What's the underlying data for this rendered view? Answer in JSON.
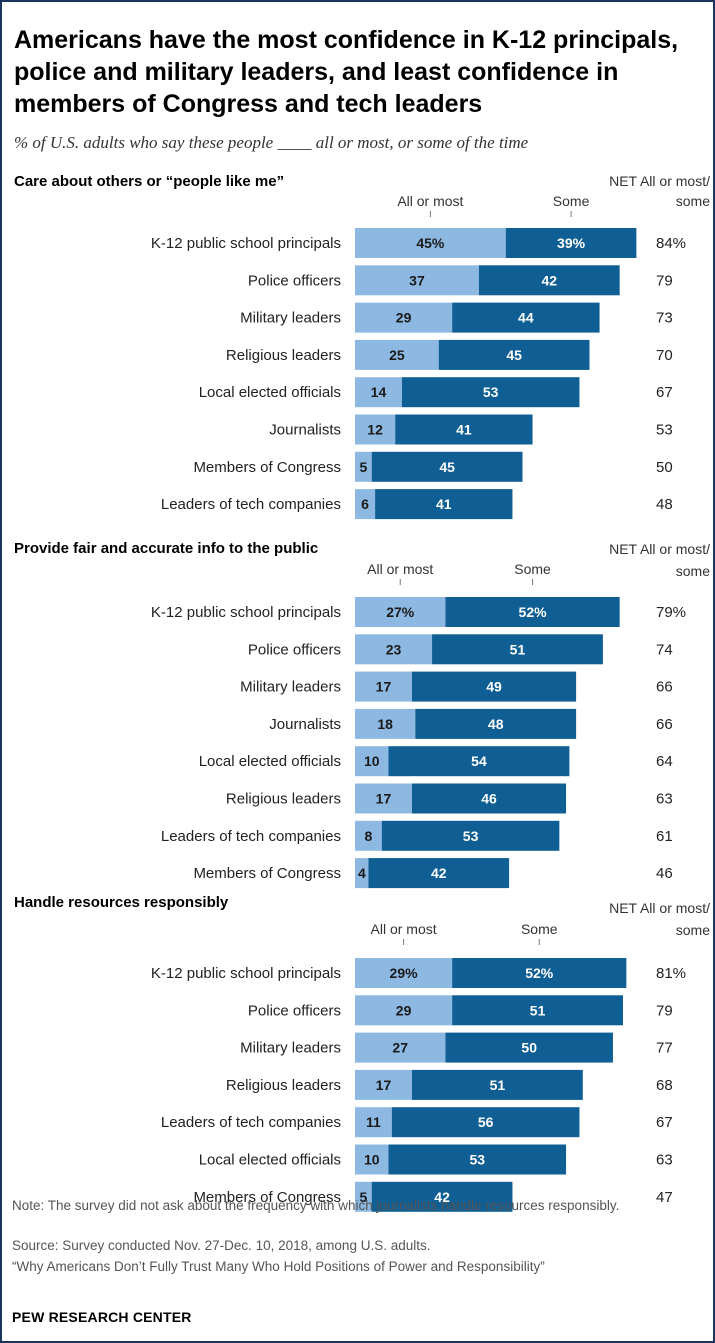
{
  "title": "Americans have the most confidence in K-12 principals, police and military leaders, and least confidence in members of Congress and tech leaders",
  "subtitle": "% of U.S. adults who say these people ____ all or most, or some of the time",
  "colors": {
    "all_or_most": "#8db8e2",
    "some": "#0f5e94"
  },
  "chart_data": [
    {
      "type": "bar",
      "stacked": true,
      "orientation": "horizontal",
      "title": "Care about others or “people like me”",
      "column_labels": {
        "all_or_most": "All or most",
        "some": "Some",
        "net_line1": "NET All or most/",
        "net_line2": "some"
      },
      "categories": [
        "K-12 public school principals",
        "Police officers",
        "Military leaders",
        "Religious leaders",
        "Local elected officials",
        "Journalists",
        "Members of Congress",
        "Leaders of tech companies"
      ],
      "series": [
        {
          "name": "All or most",
          "values": [
            45,
            37,
            29,
            25,
            14,
            12,
            5,
            6
          ],
          "labels": [
            "45%",
            "37",
            "29",
            "25",
            "14",
            "12",
            "5",
            "6"
          ]
        },
        {
          "name": "Some",
          "values": [
            39,
            42,
            44,
            45,
            53,
            41,
            45,
            41
          ],
          "labels": [
            "39%",
            "42",
            "44",
            "45",
            "53",
            "41",
            "45",
            "41"
          ]
        }
      ],
      "net": [
        "84%",
        "79",
        "73",
        "70",
        "67",
        "53",
        "50",
        "48"
      ]
    },
    {
      "type": "bar",
      "stacked": true,
      "orientation": "horizontal",
      "title": "Provide fair and accurate info to the public",
      "column_labels": {
        "all_or_most": "All or most",
        "some": "Some",
        "net_line1": "NET All or most/",
        "net_line2": "some"
      },
      "categories": [
        "K-12 public school principals",
        "Police officers",
        "Military leaders",
        "Journalists",
        "Local elected officials",
        "Religious leaders",
        "Leaders of tech companies",
        "Members of Congress"
      ],
      "series": [
        {
          "name": "All or most",
          "values": [
            27,
            23,
            17,
            18,
            10,
            17,
            8,
            4
          ],
          "labels": [
            "27%",
            "23",
            "17",
            "18",
            "10",
            "17",
            "8",
            "4"
          ]
        },
        {
          "name": "Some",
          "values": [
            52,
            51,
            49,
            48,
            54,
            46,
            53,
            42
          ],
          "labels": [
            "52%",
            "51",
            "49",
            "48",
            "54",
            "46",
            "53",
            "42"
          ]
        }
      ],
      "net": [
        "79%",
        "74",
        "66",
        "66",
        "64",
        "63",
        "61",
        "46"
      ]
    },
    {
      "type": "bar",
      "stacked": true,
      "orientation": "horizontal",
      "title": "Handle resources responsibly",
      "column_labels": {
        "all_or_most": "All or most",
        "some": "Some",
        "net_line1": "NET All or most/",
        "net_line2": "some"
      },
      "categories": [
        "K-12 public school principals",
        "Police officers",
        "Military leaders",
        "Religious leaders",
        "Leaders of tech companies",
        "Local elected officials",
        "Members of Congress"
      ],
      "series": [
        {
          "name": "All or most",
          "values": [
            29,
            29,
            27,
            17,
            11,
            10,
            5
          ],
          "labels": [
            "29%",
            "29",
            "27",
            "17",
            "11",
            "10",
            "5"
          ]
        },
        {
          "name": "Some",
          "values": [
            52,
            51,
            50,
            51,
            56,
            53,
            42
          ],
          "labels": [
            "52%",
            "51",
            "50",
            "51",
            "56",
            "53",
            "42"
          ]
        }
      ],
      "net": [
        "81%",
        "79",
        "77",
        "68",
        "67",
        "63",
        "47"
      ]
    }
  ],
  "notes": {
    "note": "Note: The survey did not ask about the frequency with which journalists handle resources responsibly.",
    "source": "Source: Survey conducted Nov. 27-Dec. 10, 2018, among U.S. adults.",
    "report": "“Why Americans Don’t Fully Trust Many Who Hold Positions of Power and Responsibility”",
    "brand": "PEW RESEARCH CENTER"
  }
}
